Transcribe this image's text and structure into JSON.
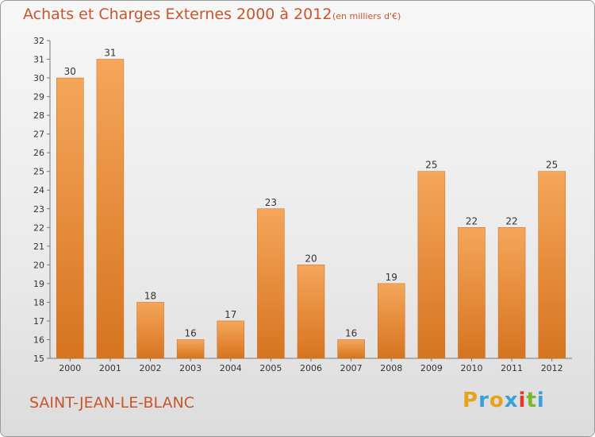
{
  "header": {
    "title": "Achats et Charges Externes 2000 à 2012",
    "unit": "(en milliers d'€)"
  },
  "footer": {
    "commune": "SAINT-JEAN-LE-BLANC",
    "logo_text": "Proxiti"
  },
  "colors": {
    "text_accent": "#c8562d",
    "bar_light": "#f5a65a",
    "bar_dark": "#d6741f",
    "logo_letters": [
      "#e8a21a",
      "#3aa0d8",
      "#e8a21a",
      "#3aa0d8",
      "#e23a2a",
      "#7ab82a",
      "#3aa0d8"
    ]
  },
  "chart_data": {
    "type": "bar",
    "title": "Achats et Charges Externes 2000 à 2012",
    "subtitle": "(en milliers d'€)",
    "categories": [
      "2000",
      "2001",
      "2002",
      "2003",
      "2004",
      "2005",
      "2006",
      "2007",
      "2008",
      "2009",
      "2010",
      "2011",
      "2012"
    ],
    "values": [
      30,
      31,
      18,
      16,
      17,
      23,
      20,
      16,
      19,
      25,
      22,
      22,
      25
    ],
    "ylim": [
      15,
      32
    ],
    "yticks": [
      15,
      16,
      17,
      18,
      19,
      20,
      21,
      22,
      23,
      24,
      25,
      26,
      27,
      28,
      29,
      30,
      31,
      32
    ],
    "grid": false,
    "xlabel": "",
    "ylabel": ""
  }
}
